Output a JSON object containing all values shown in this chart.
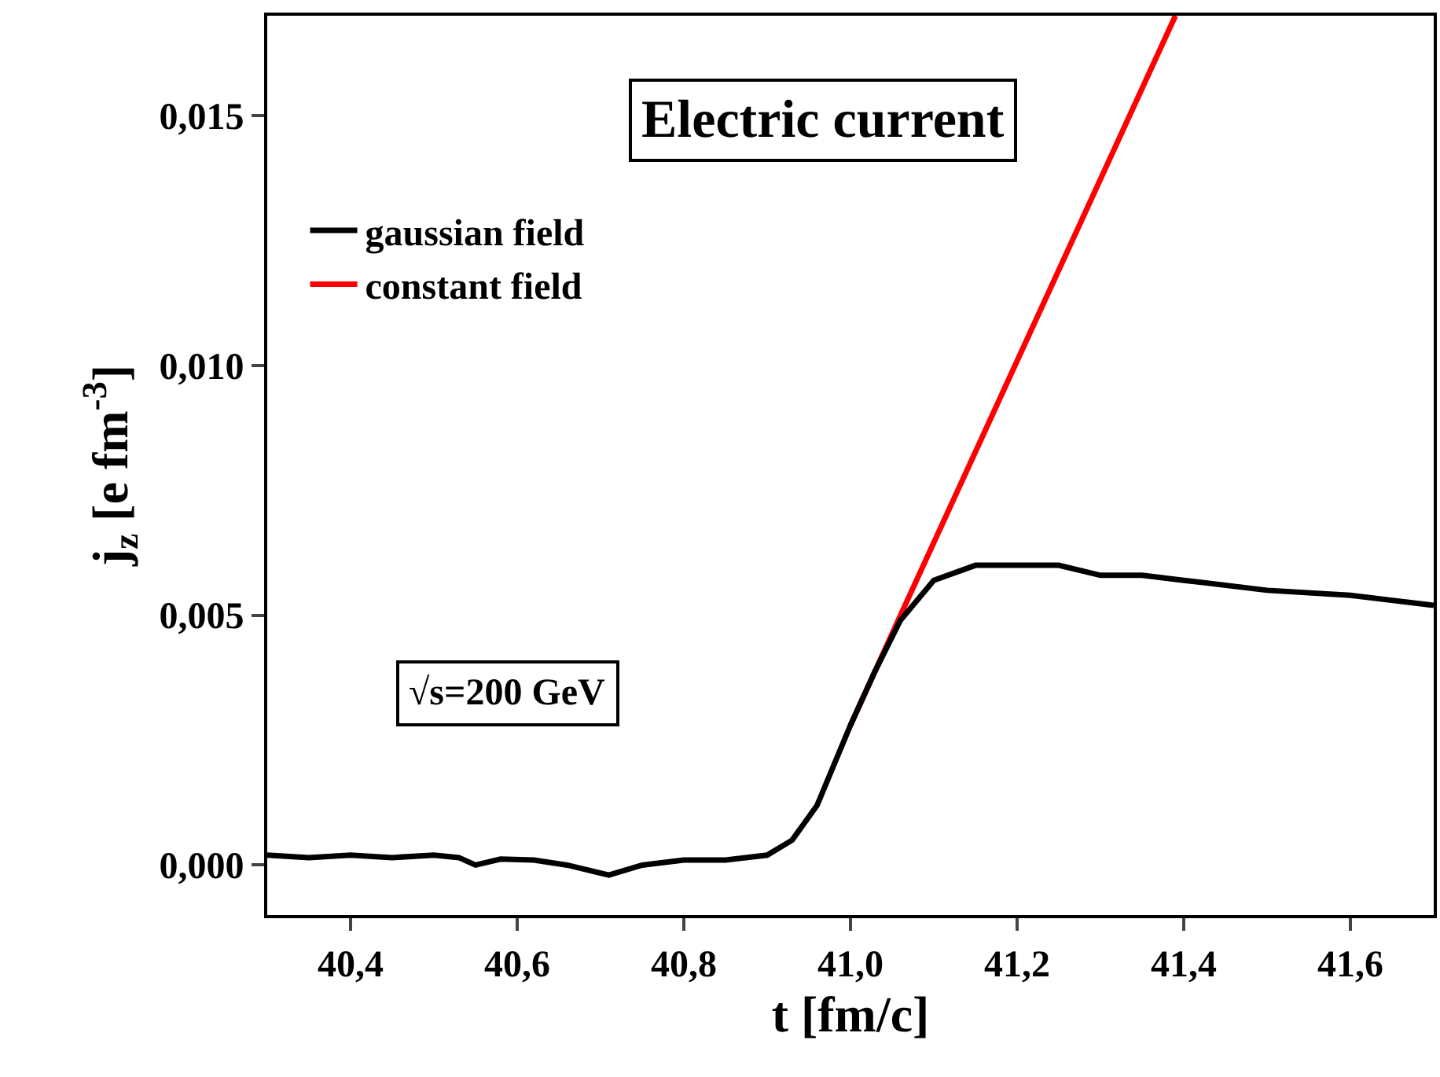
{
  "chart_data": {
    "type": "line",
    "title": "Electric current",
    "xlabel": "t [fm/c]",
    "ylabel": "j$_{z}$ [e fm$^{-3}$]",
    "annotations": [
      "√s=200 GeV"
    ],
    "series": [
      {
        "name": "gaussian field",
        "color": "#000000",
        "x": [
          40.3,
          40.35,
          40.4,
          40.45,
          40.5,
          40.53,
          40.55,
          40.58,
          40.62,
          40.66,
          40.71,
          40.75,
          40.8,
          40.85,
          40.9,
          40.93,
          40.96,
          41.0,
          41.03,
          41.06,
          41.1,
          41.15,
          41.2,
          41.25,
          41.3,
          41.35,
          41.4,
          41.5,
          41.6,
          41.7
        ],
        "values": [
          0.0002,
          0.00015,
          0.0002,
          0.00015,
          0.0002,
          0.00015,
          0.0,
          0.00012,
          0.0001,
          0.0,
          -0.0002,
          0.0,
          0.0001,
          0.0001,
          0.0002,
          0.0005,
          0.0012,
          0.0028,
          0.0039,
          0.0049,
          0.0057,
          0.006,
          0.006,
          0.006,
          0.0058,
          0.0058,
          0.0057,
          0.0055,
          0.0054,
          0.0052
        ]
      },
      {
        "name": "constant field",
        "color": "#ff0000",
        "x": [
          41.0,
          41.06,
          41.39
        ],
        "values": [
          0.0028,
          0.005,
          0.017
        ]
      }
    ],
    "xlim": [
      40.3,
      41.7
    ],
    "ylim": [
      -0.001,
      0.017
    ],
    "xticks": [
      {
        "value": 40.4,
        "label": "40,4"
      },
      {
        "value": 40.6,
        "label": "40,6"
      },
      {
        "value": 40.8,
        "label": "40,8"
      },
      {
        "value": 41.0,
        "label": "41,0"
      },
      {
        "value": 41.2,
        "label": "41,2"
      },
      {
        "value": 41.4,
        "label": "41,4"
      },
      {
        "value": 41.6,
        "label": "41,6"
      }
    ],
    "yticks": [
      {
        "value": 0.0,
        "label": "0,000"
      },
      {
        "value": 0.005,
        "label": "0,005"
      },
      {
        "value": 0.01,
        "label": "0,010"
      },
      {
        "value": 0.015,
        "label": "0,015"
      }
    ],
    "legend": "top left",
    "line_style": "solid"
  }
}
